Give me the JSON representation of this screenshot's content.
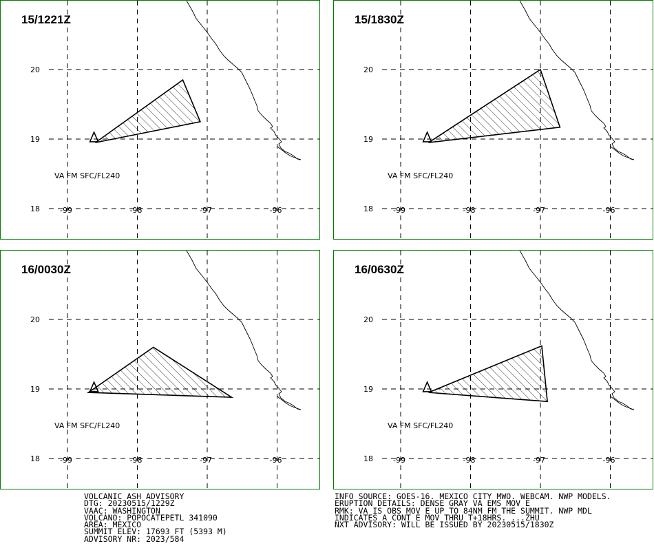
{
  "panels": [
    {
      "time_label": "15/1221Z",
      "layer_label": "VA FM SFC/FL240",
      "ash_polygon": [
        [
          -98.6,
          18.95
        ],
        [
          -97.35,
          19.85
        ],
        [
          -97.1,
          19.25
        ]
      ]
    },
    {
      "time_label": "15/1830Z",
      "layer_label": "VA FM SFC/FL240",
      "ash_polygon": [
        [
          -98.6,
          18.95
        ],
        [
          -97.0,
          20.0
        ],
        [
          -96.72,
          19.17
        ]
      ]
    },
    {
      "time_label": "16/0030Z",
      "layer_label": "VA FM SFC/FL240",
      "ash_polygon": [
        [
          -98.7,
          18.95
        ],
        [
          -97.77,
          19.6
        ],
        [
          -96.65,
          18.88
        ]
      ]
    },
    {
      "time_label": "16/0630Z",
      "layer_label": "VA FM SFC/FL240",
      "ash_polygon": [
        [
          -98.6,
          18.95
        ],
        [
          -96.98,
          19.62
        ],
        [
          -96.9,
          18.82
        ]
      ]
    }
  ],
  "lat_ticks": [
    "20",
    "19",
    "18"
  ],
  "lon_ticks": [
    "-99",
    "-98",
    "-97",
    "-96"
  ],
  "volcano": {
    "lon": -98.62,
    "lat": 19.02
  },
  "advisory_left": [
    "VOLCANIC ASH ADVISORY",
    "DTG: 20230515/1229Z",
    "VAAC: WASHINGTON",
    "VOLCANO: POPOCATEPETL 341090",
    "AREA: MEXICO",
    "SUMMIT ELEV: 17693 FT (5393 M)",
    "ADVISORY NR: 2023/584"
  ],
  "advisory_right": [
    "INFO SOURCE: GOES-16. MEXICO CITY MWO. WEBCAM. NWP MODELS.",
    "ERUPTION DETAILS: DENSE GRAY VA EMS MOV E",
    "RMK: VA IS OBS MOV E UP TO 84NM FM THE SUMMIT. NWP MDL",
    "INDICATES A CONT E MOV THRU T+18HRS. ...ZHU",
    "NXT ADVISORY: WILL BE ISSUED BY 20230515/1830Z"
  ],
  "colors": {
    "panel_border": "#007a00",
    "lines": "#000000",
    "background": "#ffffff"
  }
}
